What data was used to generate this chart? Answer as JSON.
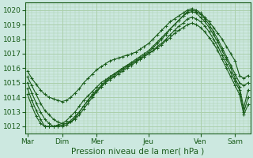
{
  "xlabel": "Pression niveau de la mer( hPa )",
  "bg_color": "#cce8e0",
  "grid_color": "#aacfaa",
  "line_color": "#1a5c1a",
  "ylim": [
    1011.5,
    1020.5
  ],
  "yticks": [
    1012,
    1013,
    1014,
    1015,
    1016,
    1017,
    1018,
    1019,
    1020
  ],
  "day_labels": [
    "Mar",
    "Dim",
    "Mer",
    "Jeu",
    "Ven",
    "Sam"
  ],
  "day_positions": [
    0,
    8,
    16,
    28,
    40,
    48
  ],
  "n_points": 52,
  "series": [
    [
      1015.8,
      1015.3,
      1014.9,
      1014.5,
      1014.2,
      1014.0,
      1013.9,
      1013.8,
      1013.7,
      1013.8,
      1014.0,
      1014.3,
      1014.6,
      1015.0,
      1015.3,
      1015.6,
      1015.9,
      1016.1,
      1016.3,
      1016.5,
      1016.6,
      1016.7,
      1016.8,
      1016.9,
      1017.0,
      1017.1,
      1017.3,
      1017.5,
      1017.7,
      1018.0,
      1018.3,
      1018.6,
      1018.9,
      1019.2,
      1019.4,
      1019.6,
      1019.8,
      1020.0,
      1020.1,
      1020.0,
      1019.8,
      1019.5,
      1019.2,
      1018.8,
      1018.4,
      1018.0,
      1017.5,
      1017.0,
      1016.5,
      1015.5,
      1015.3,
      1015.5
    ],
    [
      1015.4,
      1014.8,
      1014.2,
      1013.6,
      1013.1,
      1012.8,
      1012.5,
      1012.3,
      1012.2,
      1012.2,
      1012.3,
      1012.5,
      1012.8,
      1013.2,
      1013.6,
      1014.0,
      1014.4,
      1014.7,
      1015.0,
      1015.3,
      1015.5,
      1015.7,
      1015.9,
      1016.1,
      1016.3,
      1016.5,
      1016.7,
      1016.9,
      1017.1,
      1017.4,
      1017.7,
      1018.0,
      1018.3,
      1018.7,
      1019.0,
      1019.3,
      1019.6,
      1019.9,
      1020.0,
      1019.9,
      1019.7,
      1019.4,
      1019.0,
      1018.5,
      1018.0,
      1017.4,
      1016.8,
      1016.2,
      1015.6,
      1015.0,
      1014.8,
      1015.0
    ],
    [
      1015.0,
      1014.3,
      1013.6,
      1013.0,
      1012.5,
      1012.2,
      1012.0,
      1012.0,
      1012.0,
      1012.1,
      1012.3,
      1012.6,
      1013.0,
      1013.4,
      1013.8,
      1014.2,
      1014.5,
      1014.8,
      1015.1,
      1015.4,
      1015.6,
      1015.8,
      1016.0,
      1016.2,
      1016.4,
      1016.6,
      1016.8,
      1017.0,
      1017.2,
      1017.5,
      1017.8,
      1018.1,
      1018.4,
      1018.7,
      1019.0,
      1019.3,
      1019.6,
      1019.8,
      1019.9,
      1019.8,
      1019.5,
      1019.2,
      1018.8,
      1018.3,
      1017.8,
      1017.2,
      1016.6,
      1016.0,
      1015.3,
      1014.7,
      1013.3,
      1014.5
    ],
    [
      1014.6,
      1013.8,
      1013.1,
      1012.5,
      1012.0,
      1012.0,
      1012.0,
      1012.0,
      1012.1,
      1012.2,
      1012.4,
      1012.7,
      1013.0,
      1013.4,
      1013.8,
      1014.1,
      1014.4,
      1014.7,
      1015.0,
      1015.2,
      1015.4,
      1015.6,
      1015.8,
      1016.0,
      1016.2,
      1016.4,
      1016.6,
      1016.8,
      1017.0,
      1017.2,
      1017.5,
      1017.7,
      1018.0,
      1018.3,
      1018.6,
      1018.9,
      1019.1,
      1019.4,
      1019.5,
      1019.4,
      1019.2,
      1018.9,
      1018.5,
      1018.0,
      1017.5,
      1016.9,
      1016.3,
      1015.7,
      1015.1,
      1014.5,
      1013.0,
      1014.0
    ],
    [
      1014.2,
      1013.4,
      1012.7,
      1012.2,
      1012.0,
      1012.0,
      1012.0,
      1012.1,
      1012.2,
      1012.4,
      1012.7,
      1013.0,
      1013.4,
      1013.8,
      1014.1,
      1014.4,
      1014.7,
      1015.0,
      1015.2,
      1015.4,
      1015.6,
      1015.8,
      1016.0,
      1016.2,
      1016.3,
      1016.5,
      1016.6,
      1016.8,
      1017.0,
      1017.2,
      1017.4,
      1017.6,
      1017.9,
      1018.1,
      1018.4,
      1018.6,
      1018.8,
      1019.0,
      1019.1,
      1019.0,
      1018.8,
      1018.5,
      1018.1,
      1017.7,
      1017.2,
      1016.6,
      1016.0,
      1015.4,
      1014.8,
      1014.2,
      1012.8,
      1013.5
    ]
  ]
}
